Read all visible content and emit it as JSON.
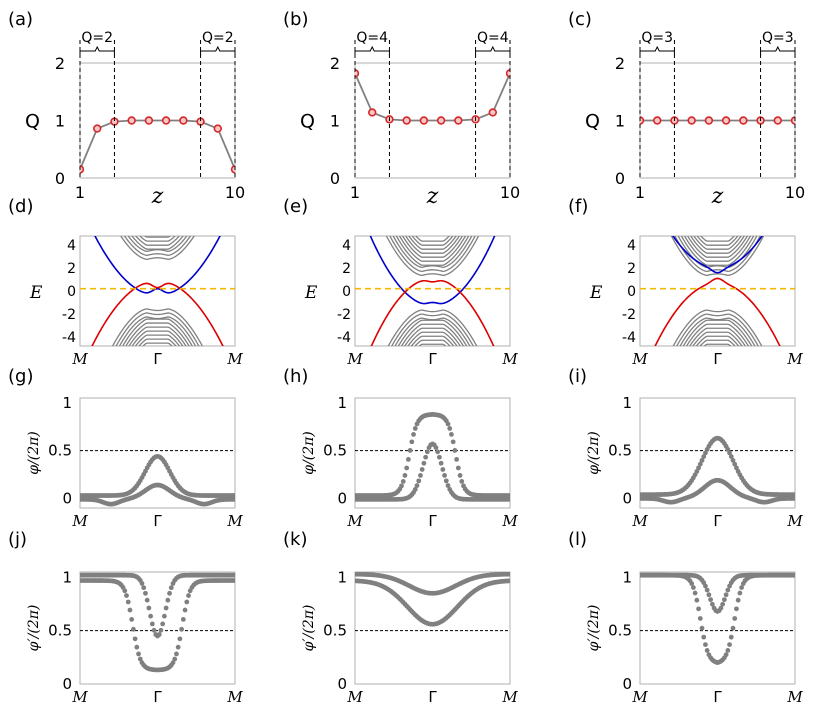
{
  "chart_data": [
    {
      "panel": "(a)",
      "type": "line",
      "row": "Q",
      "ylabel": "Q",
      "xlabel": "z",
      "xlim": [
        1,
        10
      ],
      "ylim": [
        0,
        2
      ],
      "xticks": [
        "1",
        "10"
      ],
      "yticks": [
        "0",
        "1",
        "2"
      ],
      "marker_color": "#d62728",
      "line_color": "#808080",
      "x": [
        1,
        2,
        3,
        4,
        5,
        6,
        7,
        8,
        9,
        10
      ],
      "values": [
        0.15,
        0.86,
        0.98,
        1.0,
        1.0,
        1.0,
        1.0,
        0.98,
        0.86,
        0.15
      ],
      "brackets": [
        {
          "label": "Q=2",
          "from": 1,
          "to": 3
        },
        {
          "label": "Q=2",
          "from": 8,
          "to": 10
        }
      ]
    },
    {
      "panel": "(b)",
      "type": "line",
      "row": "Q",
      "ylabel": "Q",
      "xlabel": "z",
      "xlim": [
        1,
        10
      ],
      "ylim": [
        0,
        2
      ],
      "xticks": [
        "1",
        "10"
      ],
      "yticks": [
        "0",
        "1",
        "2"
      ],
      "marker_color": "#d62728",
      "line_color": "#808080",
      "x": [
        1,
        2,
        3,
        4,
        5,
        6,
        7,
        8,
        9,
        10
      ],
      "values": [
        1.82,
        1.14,
        1.02,
        1.0,
        1.0,
        1.0,
        1.0,
        1.02,
        1.14,
        1.82
      ],
      "brackets": [
        {
          "label": "Q=4",
          "from": 1,
          "to": 3
        },
        {
          "label": "Q=4",
          "from": 8,
          "to": 10
        }
      ]
    },
    {
      "panel": "(c)",
      "type": "line",
      "row": "Q",
      "ylabel": "Q",
      "xlabel": "z",
      "xlim": [
        1,
        10
      ],
      "ylim": [
        0,
        2
      ],
      "xticks": [
        "1",
        "10"
      ],
      "yticks": [
        "0",
        "1",
        "2"
      ],
      "marker_color": "#d62728",
      "line_color": "#808080",
      "x": [
        1,
        2,
        3,
        4,
        5,
        6,
        7,
        8,
        9,
        10
      ],
      "values": [
        1.0,
        1.0,
        1.0,
        1.0,
        1.0,
        1.0,
        1.0,
        1.0,
        1.0,
        1.0
      ],
      "brackets": [
        {
          "label": "Q=3",
          "from": 1,
          "to": 3
        },
        {
          "label": "Q=3",
          "from": 8,
          "to": 10
        }
      ]
    },
    {
      "panel": "(d)",
      "type": "line",
      "row": "bands",
      "ylabel": "E",
      "xlim": [
        -1,
        1
      ],
      "ylim": [
        -4.8,
        4.8
      ],
      "xticks": [
        "M",
        "Γ",
        "M"
      ],
      "yticks": [
        "-4",
        "-2",
        "0",
        "2",
        "4"
      ],
      "bulk_color": "#808080",
      "upper_color": "#0000cc",
      "lower_color": "#dd0000",
      "fermi_color": "#f5b800",
      "fermi_level": 0.2,
      "bulk_upper_min": [
        2.6,
        2.95,
        3.3,
        3.65,
        4.0,
        4.35,
        4.7,
        5.05,
        5.4,
        5.75
      ],
      "bulk_lower_max": [
        -1.4,
        -1.75,
        -2.1,
        -2.45,
        -2.8,
        -3.15,
        -3.5,
        -3.85,
        -4.2,
        -4.55
      ],
      "bulk_curvature": 9,
      "blue_band": {
        "gamma": -0.4,
        "curvature": 8,
        "bump": 0.6
      },
      "red_band": {
        "gamma": 0.9,
        "curvature": -8,
        "bump": -0.6
      }
    },
    {
      "panel": "(e)",
      "type": "line",
      "row": "bands",
      "ylabel": "E",
      "xlim": [
        -1,
        1
      ],
      "ylim": [
        -4.8,
        4.8
      ],
      "xticks": [
        "M",
        "Γ",
        "M"
      ],
      "yticks": [
        "-4",
        "-2",
        "0",
        "2",
        "4"
      ],
      "bulk_color": "#808080",
      "upper_color": "#0000cc",
      "lower_color": "#dd0000",
      "fermi_color": "#f5b800",
      "fermi_level": 0.2,
      "bulk_upper_min": [
        1.2,
        1.55,
        1.9,
        2.25,
        2.6,
        2.95,
        3.3,
        3.65,
        4.0,
        4.35
      ],
      "bulk_lower_max": [
        -1.5,
        -1.85,
        -2.2,
        -2.55,
        -2.9,
        -3.25,
        -3.6,
        -3.95,
        -4.3,
        -4.65
      ],
      "bulk_curvature": 9,
      "blue_band": {
        "gamma": -1.3,
        "curvature": 9.5,
        "bump": 0.3
      },
      "red_band": {
        "gamma": 1.1,
        "curvature": -9.5,
        "bump": -0.3
      }
    },
    {
      "panel": "(f)",
      "type": "line",
      "row": "bands",
      "ylabel": "E",
      "xlim": [
        -1,
        1
      ],
      "ylim": [
        -4.8,
        4.8
      ],
      "xticks": [
        "M",
        "Γ",
        "M"
      ],
      "yticks": [
        "-4",
        "-2",
        "0",
        "2",
        "4"
      ],
      "bulk_color": "#808080",
      "upper_color": "#0000cc",
      "lower_color": "#dd0000",
      "fermi_color": "#f5b800",
      "fermi_level": 0.2,
      "bulk_upper_min": [
        1.2,
        1.55,
        1.9,
        2.25,
        2.6,
        2.95,
        3.3,
        3.65,
        4.0,
        4.35
      ],
      "bulk_lower_max": [
        -1.5,
        -1.85,
        -2.2,
        -2.55,
        -2.9,
        -3.25,
        -3.6,
        -3.95,
        -4.3,
        -4.65
      ],
      "bulk_curvature": 9,
      "blue_band": {
        "gamma": 2.0,
        "curvature": 8.5,
        "bump": -0.4
      },
      "red_band": {
        "gamma": 0.7,
        "curvature": -8.5,
        "bump": 0.4
      }
    },
    {
      "panel": "(g)",
      "type": "scatter",
      "row": "phi",
      "ylabel": "φ/(2π)",
      "xlim": [
        -1,
        1
      ],
      "ylim": [
        -0.1,
        1.05
      ],
      "xticks": [
        "M",
        "Γ",
        "M"
      ],
      "yticks": [
        "0",
        "0.5",
        "1"
      ],
      "reference_line": 0.5,
      "marker_color": "#808080",
      "series": [
        {
          "edge": 0.03,
          "center": 0.44,
          "width": 0.16,
          "dip": 0.0
        },
        {
          "edge": -0.01,
          "center": 0.14,
          "width": 0.16,
          "dip": -0.05
        }
      ]
    },
    {
      "panel": "(h)",
      "type": "scatter",
      "row": "phi",
      "ylabel": "φ/(2π)",
      "xlim": [
        -1,
        1
      ],
      "ylim": [
        -0.1,
        1.05
      ],
      "xticks": [
        "M",
        "Γ",
        "M"
      ],
      "yticks": [
        "0",
        "0.5",
        "1"
      ],
      "reference_line": 0.5,
      "marker_color": "#808080",
      "series": [
        {
          "edge": 0.03,
          "center": 0.88,
          "width": 0.3,
          "dip": 0.0,
          "flat": true
        },
        {
          "edge": -0.01,
          "center": 0.57,
          "width": 0.12,
          "dip": 0.0
        }
      ]
    },
    {
      "panel": "(i)",
      "type": "scatter",
      "row": "phi",
      "ylabel": "φ/(2π)",
      "xlim": [
        -1,
        1
      ],
      "ylim": [
        -0.1,
        1.05
      ],
      "xticks": [
        "M",
        "Γ",
        "M"
      ],
      "yticks": [
        "0",
        "0.5",
        "1"
      ],
      "reference_line": 0.5,
      "marker_color": "#808080",
      "series": [
        {
          "edge": 0.04,
          "center": 0.63,
          "width": 0.2,
          "dip": 0.0
        },
        {
          "edge": 0.0,
          "center": 0.19,
          "width": 0.17,
          "dip": -0.04
        }
      ]
    },
    {
      "panel": "(j)",
      "type": "scatter",
      "row": "phiprime",
      "ylabel": "φ′/(2π)",
      "xlim": [
        -1,
        1
      ],
      "ylim": [
        0,
        1.05
      ],
      "xticks": [
        "M",
        "Γ",
        "M"
      ],
      "yticks": [
        "0",
        "0.5",
        "1"
      ],
      "reference_line": 0.5,
      "marker_color": "#808080",
      "series": [
        {
          "edge": 1.02,
          "center": 0.45,
          "width": 0.1,
          "dip": 0.0
        },
        {
          "edge": 0.97,
          "center": 0.13,
          "width": 0.32,
          "dip": 0.0,
          "flat": true
        }
      ]
    },
    {
      "panel": "(k)",
      "type": "scatter",
      "row": "phiprime",
      "ylabel": "φ′/(2π)",
      "xlim": [
        -1,
        1
      ],
      "ylim": [
        0,
        1.05
      ],
      "xticks": [
        "M",
        "Γ",
        "M"
      ],
      "yticks": [
        "0",
        "0.5",
        "1"
      ],
      "reference_line": 0.5,
      "marker_color": "#808080",
      "series": [
        {
          "edge": 1.03,
          "center": 0.85,
          "width": 0.3,
          "dip": 0.0
        },
        {
          "edge": 0.97,
          "center": 0.56,
          "width": 0.32,
          "dip": 0.0
        }
      ]
    },
    {
      "panel": "(l)",
      "type": "scatter",
      "row": "phiprime",
      "ylabel": "φ′/(2π)",
      "xlim": [
        -1,
        1
      ],
      "ylim": [
        0,
        1.05
      ],
      "xticks": [
        "M",
        "Γ",
        "M"
      ],
      "yticks": [
        "0",
        "0.5",
        "1"
      ],
      "reference_line": 0.5,
      "marker_color": "#808080",
      "series": [
        {
          "edge": 1.02,
          "center": 0.68,
          "width": 0.1,
          "dip": 0.0
        },
        {
          "edge": 1.02,
          "center": 0.19,
          "width": 0.22,
          "dip": 0.0,
          "flat": true
        }
      ]
    }
  ]
}
